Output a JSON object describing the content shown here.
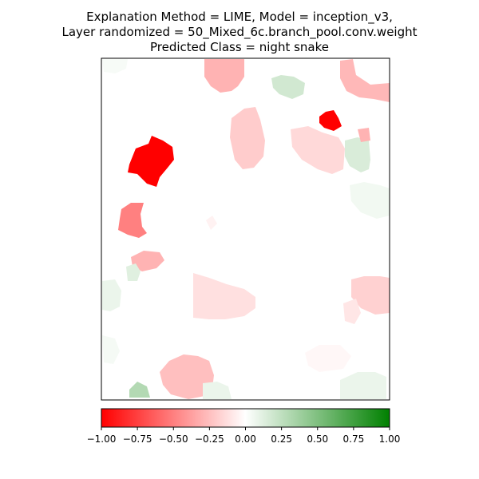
{
  "title_lines": [
    "Explanation Method = LIME, Model = inception_v3,",
    "Layer randomized = 50_Mixed_6c.branch_pool.conv.weight",
    "Predicted Class = night snake"
  ],
  "colors": {
    "negative": "#ff0000",
    "neutral": "#ffffff",
    "positive": "#008000"
  },
  "chart_data": {
    "type": "heatmap",
    "title": "Explanation Method = LIME, Model = inception_v3, Layer randomized = 50_Mixed_6c.branch_pool.conv.weight, Predicted Class = night snake",
    "colorbar": {
      "orientation": "horizontal",
      "range": [
        -1.0,
        1.0
      ],
      "ticks": [
        -1.0,
        -0.75,
        -0.5,
        -0.25,
        0.0,
        0.25,
        0.5,
        0.75,
        1.0
      ],
      "tick_labels": [
        "−1.00",
        "−0.75",
        "−0.50",
        "−0.25",
        "0.00",
        "0.25",
        "0.50",
        "0.75",
        "1.00"
      ]
    },
    "axes_ticks_visible": false,
    "segments": [
      {
        "name": "segment-top-left",
        "value": 0.03
      },
      {
        "name": "segment-top-center",
        "value": -0.3
      },
      {
        "name": "segment-top-green",
        "value": 0.18
      },
      {
        "name": "segment-top-right",
        "value": -0.28
      },
      {
        "name": "segment-small-red",
        "value": -1.0
      },
      {
        "name": "segment-upper-center",
        "value": -0.2
      },
      {
        "name": "segment-upper-right-band",
        "value": -0.15
      },
      {
        "name": "segment-right-green",
        "value": 0.15
      },
      {
        "name": "segment-right-small-pink",
        "value": -0.3
      },
      {
        "name": "segment-large-red",
        "value": -1.0
      },
      {
        "name": "segment-left-pink",
        "value": -0.5
      },
      {
        "name": "segment-center-small",
        "value": -0.05
      },
      {
        "name": "segment-right-edge-green",
        "value": 0.05
      },
      {
        "name": "segment-mid-left-pink",
        "value": -0.3
      },
      {
        "name": "segment-mid-left-green",
        "value": 0.12
      },
      {
        "name": "segment-left-edge-green",
        "value": 0.08
      },
      {
        "name": "segment-center-large",
        "value": -0.12
      },
      {
        "name": "segment-right-mid",
        "value": -0.18
      },
      {
        "name": "segment-right-mid-lower",
        "value": -0.1
      },
      {
        "name": "segment-bottom-left-green",
        "value": 0.04
      },
      {
        "name": "segment-bottom-center",
        "value": -0.25
      },
      {
        "name": "segment-bottom-center-green",
        "value": 0.08
      },
      {
        "name": "segment-bottom-green-small",
        "value": 0.3
      },
      {
        "name": "segment-bottom-right-faint",
        "value": -0.03
      },
      {
        "name": "segment-bottom-right-green",
        "value": 0.08
      }
    ]
  }
}
